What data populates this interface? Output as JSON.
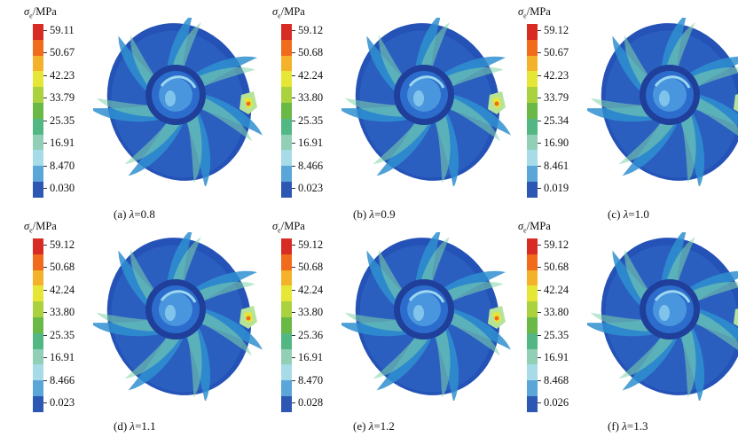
{
  "legend_title_symbol": "σ",
  "legend_title_sub": "e",
  "legend_title_unit": "/MPa",
  "colors": [
    "#d72b24",
    "#f06c1c",
    "#f3b22a",
    "#e6e636",
    "#a9d23e",
    "#6ab845",
    "#52b783",
    "#92cfb7",
    "#a8dbe8",
    "#5aa6d8",
    "#2c57b2"
  ],
  "panels": [
    {
      "ticks": [
        "59.11",
        "50.67",
        "42.23",
        "33.79",
        "25.35",
        "16.91",
        "8.470",
        "0.030"
      ],
      "caption_prefix": "(a) ",
      "caption_var": "λ",
      "caption_value": "=0.8"
    },
    {
      "ticks": [
        "59.12",
        "50.68",
        "42.24",
        "33.80",
        "25.35",
        "16.91",
        "8.466",
        "0.023"
      ],
      "caption_prefix": "(b) ",
      "caption_var": "λ",
      "caption_value": "=0.9"
    },
    {
      "ticks": [
        "59.12",
        "50.67",
        "42.23",
        "33.79",
        "25.34",
        "16.90",
        "8.461",
        "0.019"
      ],
      "caption_prefix": "(c) ",
      "caption_var": "λ",
      "caption_value": "=1.0"
    },
    {
      "ticks": [
        "59.12",
        "50.68",
        "42.24",
        "33.80",
        "25.35",
        "16.91",
        "8.466",
        "0.023"
      ],
      "caption_prefix": "(d) ",
      "caption_var": "λ",
      "caption_value": "=1.1"
    },
    {
      "ticks": [
        "59.12",
        "50.68",
        "42.24",
        "33.80",
        "25.36",
        "16.91",
        "8.470",
        "0.028"
      ],
      "caption_prefix": "(e) ",
      "caption_var": "λ",
      "caption_value": "=1.2"
    },
    {
      "ticks": [
        "59.12",
        "50.68",
        "42.24",
        "33.80",
        "25.35",
        "16.91",
        "8.468",
        "0.026"
      ],
      "caption_prefix": "(f) ",
      "caption_var": "λ",
      "caption_value": "=1.3"
    }
  ]
}
